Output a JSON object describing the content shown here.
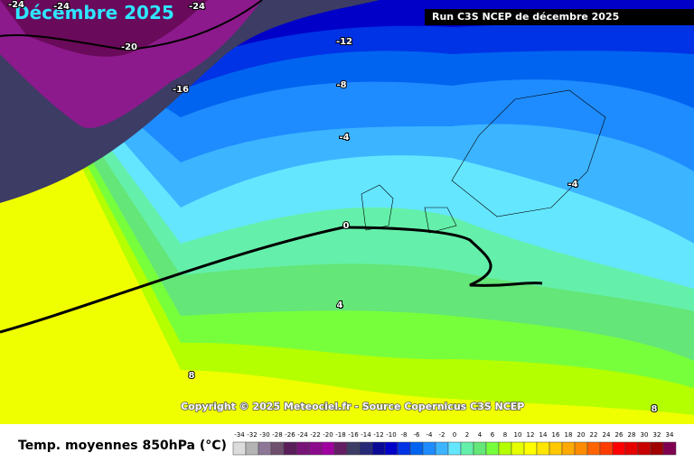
{
  "header": {
    "title": "Décembre 2025",
    "run": "Run C3S NCEP de décembre 2025"
  },
  "contour_labels": [
    "-24",
    "-24",
    "-24",
    "-20",
    "-16",
    "-12",
    "-8",
    "-4",
    "-4",
    "0",
    "4",
    "8",
    "8"
  ],
  "copyright": "Copyright © 2025 Meteociel.fr - Source Copernicus C3S NCEP",
  "legend": {
    "title": "Temp. moyennes 850hPa (°C)",
    "items": [
      {
        "value": -34,
        "color": "#dcdcdc"
      },
      {
        "value": -32,
        "color": "#b4b4b4"
      },
      {
        "value": -30,
        "color": "#8c7896"
      },
      {
        "value": -28,
        "color": "#6e506e"
      },
      {
        "value": -26,
        "color": "#5a1e5a"
      },
      {
        "value": -24,
        "color": "#781478"
      },
      {
        "value": -22,
        "color": "#8c0a8c"
      },
      {
        "value": -20,
        "color": "#a000a0"
      },
      {
        "value": -18,
        "color": "#641e64"
      },
      {
        "value": -16,
        "color": "#3c3c64"
      },
      {
        "value": -14,
        "color": "#282878"
      },
      {
        "value": -12,
        "color": "#0a0a96"
      },
      {
        "value": -10,
        "color": "#0000c8"
      },
      {
        "value": -8,
        "color": "#0032e6"
      },
      {
        "value": -6,
        "color": "#0064f0"
      },
      {
        "value": -4,
        "color": "#1e8cff"
      },
      {
        "value": -2,
        "color": "#3cb4ff"
      },
      {
        "value": 0,
        "color": "#64e6ff"
      },
      {
        "value": 2,
        "color": "#64f0aa"
      },
      {
        "value": 4,
        "color": "#64e678"
      },
      {
        "value": 6,
        "color": "#78ff3c"
      },
      {
        "value": 8,
        "color": "#b4ff00"
      },
      {
        "value": 10,
        "color": "#e6ff00"
      },
      {
        "value": 12,
        "color": "#ffff00"
      },
      {
        "value": 14,
        "color": "#ffe600"
      },
      {
        "value": 16,
        "color": "#ffc800"
      },
      {
        "value": 18,
        "color": "#ffaa00"
      },
      {
        "value": 20,
        "color": "#ff8c00"
      },
      {
        "value": 22,
        "color": "#ff6400"
      },
      {
        "value": 24,
        "color": "#ff3c00"
      },
      {
        "value": 26,
        "color": "#ff0000"
      },
      {
        "value": 28,
        "color": "#e60000"
      },
      {
        "value": 30,
        "color": "#c80000"
      },
      {
        "value": 32,
        "color": "#a00000"
      },
      {
        "value": 34,
        "color": "#800050"
      }
    ]
  }
}
